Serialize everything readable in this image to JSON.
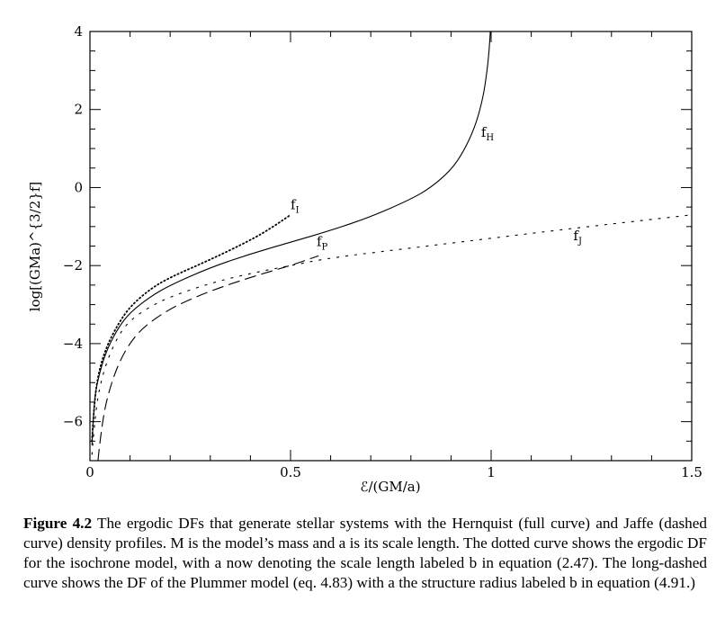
{
  "chart_data": {
    "type": "line",
    "xlabel": "ℰ/(GM/a)",
    "ylabel": "log[(GMa)^{3/2}f]",
    "xlim": [
      0,
      1.5
    ],
    "ylim": [
      -7,
      4
    ],
    "xticks": [
      {
        "value": 0,
        "label": "0"
      },
      {
        "value": 0.5,
        "label": "0.5"
      },
      {
        "value": 1,
        "label": "1"
      },
      {
        "value": 1.5,
        "label": "1.5"
      }
    ],
    "yticks": [
      {
        "value": -6,
        "label": "−6"
      },
      {
        "value": -4,
        "label": "−4"
      },
      {
        "value": -2,
        "label": "−2"
      },
      {
        "value": 0,
        "label": "0"
      },
      {
        "value": 2,
        "label": "2"
      },
      {
        "value": 4,
        "label": "4"
      }
    ],
    "grid": false,
    "series": [
      {
        "name": "fH",
        "label_main": "f",
        "label_sub": "H",
        "style": "solid",
        "color": "#000000",
        "points": [
          [
            0.005,
            -6.6
          ],
          [
            0.01,
            -5.5
          ],
          [
            0.02,
            -4.9
          ],
          [
            0.04,
            -4.2
          ],
          [
            0.07,
            -3.6
          ],
          [
            0.1,
            -3.2
          ],
          [
            0.15,
            -2.8
          ],
          [
            0.2,
            -2.5
          ],
          [
            0.3,
            -2.05
          ],
          [
            0.4,
            -1.7
          ],
          [
            0.5,
            -1.4
          ],
          [
            0.6,
            -1.1
          ],
          [
            0.7,
            -0.75
          ],
          [
            0.8,
            -0.3
          ],
          [
            0.85,
            0.0
          ],
          [
            0.9,
            0.45
          ],
          [
            0.93,
            0.9
          ],
          [
            0.96,
            1.55
          ],
          [
            0.98,
            2.3
          ],
          [
            0.99,
            3.0
          ],
          [
            0.995,
            3.5
          ],
          [
            0.998,
            4.0
          ]
        ]
      },
      {
        "name": "fJ",
        "label_main": "f",
        "label_sub": "J",
        "style": "dashed",
        "color": "#000000",
        "points": [
          [
            0.005,
            -6.85
          ],
          [
            0.01,
            -6.2
          ],
          [
            0.02,
            -5.3
          ],
          [
            0.04,
            -4.5
          ],
          [
            0.07,
            -3.8
          ],
          [
            0.1,
            -3.4
          ],
          [
            0.15,
            -3.05
          ],
          [
            0.2,
            -2.8
          ],
          [
            0.3,
            -2.45
          ],
          [
            0.4,
            -2.2
          ],
          [
            0.5,
            -2.0
          ],
          [
            0.6,
            -1.8
          ],
          [
            0.8,
            -1.55
          ],
          [
            1.0,
            -1.3
          ],
          [
            1.2,
            -1.05
          ],
          [
            1.5,
            -0.7
          ]
        ]
      },
      {
        "name": "fI",
        "label_main": "f",
        "label_sub": "I",
        "style": "dotted",
        "color": "#000000",
        "points": [
          [
            0.005,
            -6.5
          ],
          [
            0.01,
            -5.6
          ],
          [
            0.02,
            -4.8
          ],
          [
            0.04,
            -4.1
          ],
          [
            0.07,
            -3.5
          ],
          [
            0.1,
            -3.05
          ],
          [
            0.15,
            -2.6
          ],
          [
            0.2,
            -2.3
          ],
          [
            0.3,
            -1.85
          ],
          [
            0.4,
            -1.35
          ],
          [
            0.45,
            -1.05
          ],
          [
            0.5,
            -0.7
          ]
        ]
      },
      {
        "name": "fP",
        "label_main": "f",
        "label_sub": "P",
        "style": "longdash",
        "color": "#000000",
        "points": [
          [
            0.02,
            -7.0
          ],
          [
            0.03,
            -6.0
          ],
          [
            0.05,
            -5.1
          ],
          [
            0.08,
            -4.3
          ],
          [
            0.12,
            -3.7
          ],
          [
            0.17,
            -3.3
          ],
          [
            0.22,
            -3.0
          ],
          [
            0.3,
            -2.65
          ],
          [
            0.4,
            -2.3
          ],
          [
            0.5,
            -2.0
          ],
          [
            0.57,
            -1.75
          ]
        ]
      }
    ],
    "annotations": [
      {
        "series": "fH",
        "x": 0.975,
        "y": 1.3
      },
      {
        "series": "fI",
        "x": 0.5,
        "y": -0.55
      },
      {
        "series": "fP",
        "x": 0.565,
        "y": -1.5
      },
      {
        "series": "fJ",
        "x": 1.205,
        "y": -1.35
      }
    ]
  },
  "caption": {
    "label": "Figure 4.2",
    "text": " The ergodic DFs that generate stellar systems with the Hernquist (full curve) and Jaffe (dashed curve) density profiles. M is the model’s mass and a is its scale length. The dotted curve shows the ergodic DF for the isochrone model, with a now denoting the scale length labeled b in equation (2.47). The long-dashed curve shows the DF of the Plummer model (eq. 4.83) with a the structure radius labeled b in equation (4.91.)"
  }
}
